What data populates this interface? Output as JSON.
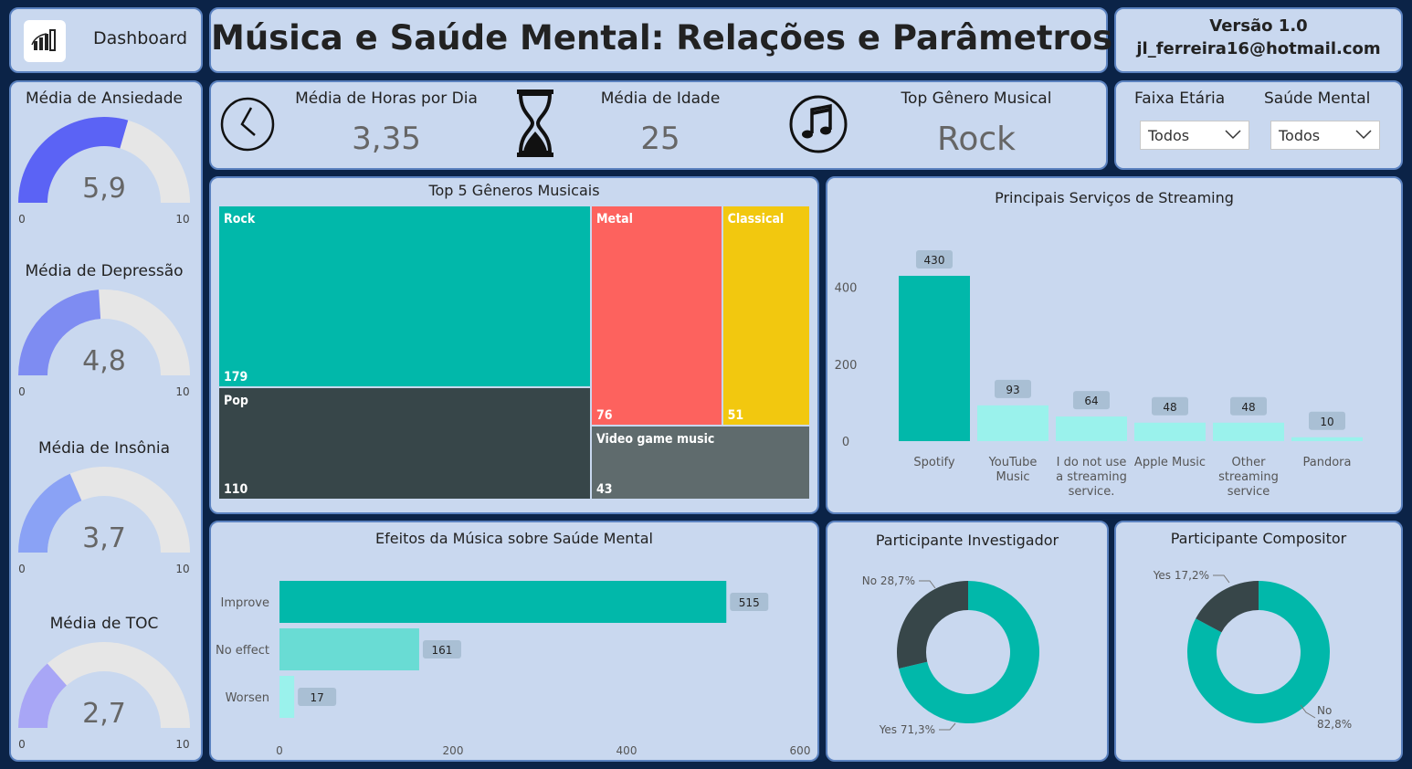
{
  "nav": {
    "label": "Dashboard"
  },
  "header": {
    "title": "Música e Saúde Mental: Relações e Parâmetros"
  },
  "version": {
    "version": "Versão 1.0",
    "email": "jl_ferreira16@hotmail.com"
  },
  "kpis": [
    {
      "label": "Média de Horas por Dia",
      "value": "3,35",
      "icon": "clock-icon"
    },
    {
      "label": "Média de Idade",
      "value": "25",
      "icon": "hourglass-icon"
    },
    {
      "label": "Top Gênero Musical",
      "value": "Rock",
      "icon": "music-note-icon"
    }
  ],
  "filters": [
    {
      "label": "Faixa Etária",
      "value": "Todos"
    },
    {
      "label": "Saúde Mental",
      "value": "Todos"
    }
  ],
  "gauges": [
    {
      "title": "Média de Ansiedade",
      "value": 5.9,
      "value_label": "5,9",
      "min": 0,
      "max": 10,
      "min_label": "0",
      "max_label": "10",
      "color": "#5b63f5"
    },
    {
      "title": "Média de Depressão",
      "value": 4.8,
      "value_label": "4,8",
      "min": 0,
      "max": 10,
      "min_label": "0",
      "max_label": "10",
      "color": "#7e8cf2"
    },
    {
      "title": "Média de Insônia",
      "value": 3.7,
      "value_label": "3,7",
      "min": 0,
      "max": 10,
      "min_label": "0",
      "max_label": "10",
      "color": "#8aa2f5"
    },
    {
      "title": "Média de TOC",
      "value": 2.7,
      "value_label": "2,7",
      "min": 0,
      "max": 10,
      "min_label": "0",
      "max_label": "10",
      "color": "#a8a6f6"
    }
  ],
  "chart_data": [
    {
      "type": "treemap",
      "title": "Top 5 Gêneros Musicais",
      "categories": [
        "Rock",
        "Pop",
        "Metal",
        "Classical",
        "Video game music"
      ],
      "values": [
        179,
        110,
        76,
        51,
        43
      ],
      "value_labels": [
        "179",
        "110",
        "76",
        "51",
        "43"
      ],
      "colors": [
        "#01b8aa",
        "#374649",
        "#fd625e",
        "#f2c80f",
        "#5f6b6d"
      ]
    },
    {
      "type": "bar",
      "title": "Principais Serviços de Streaming",
      "categories": [
        [
          "Spotify"
        ],
        [
          "YouTube",
          "Music"
        ],
        [
          "I do not use",
          "a streaming",
          "service."
        ],
        [
          "Apple Music"
        ],
        [
          "Other",
          "streaming",
          "service"
        ],
        [
          "Pandora"
        ]
      ],
      "values": [
        430,
        93,
        64,
        48,
        48,
        10
      ],
      "value_labels": [
        "430",
        "93",
        "64",
        "48",
        "48",
        "10"
      ],
      "yticks": [
        "0",
        "200",
        "400"
      ],
      "ylim": [
        0,
        480
      ],
      "colors": [
        "#01b8aa",
        "#9af2ec",
        "#9af2ec",
        "#9af2ec",
        "#9af2ec",
        "#9af2ec"
      ]
    },
    {
      "type": "bar",
      "orientation": "horizontal",
      "title": "Efeitos da Música sobre Saúde Mental",
      "categories": [
        "Improve",
        "No effect",
        "Worsen"
      ],
      "values": [
        515,
        161,
        17
      ],
      "value_labels": [
        "515",
        "161",
        "17"
      ],
      "xticks": [
        "0",
        "200",
        "400",
        "600"
      ],
      "xlim": [
        0,
        600
      ],
      "colors": [
        "#01b8aa",
        "#69dcd4",
        "#9af2ec"
      ]
    },
    {
      "type": "pie",
      "title": "Participante Investigador",
      "slices": [
        {
          "name": "Yes",
          "value": 71.3,
          "label": "Yes 71,3%",
          "color": "#01b8aa"
        },
        {
          "name": "No",
          "value": 28.7,
          "label": "No 28,7%",
          "color": "#374649"
        }
      ]
    },
    {
      "type": "pie",
      "title": "Participante Compositor",
      "slices": [
        {
          "name": "No",
          "value": 82.8,
          "label_lines": [
            "No",
            "82,8%"
          ],
          "color": "#01b8aa"
        },
        {
          "name": "Yes",
          "value": 17.2,
          "label": "Yes 17,2%",
          "color": "#374649"
        }
      ]
    }
  ]
}
